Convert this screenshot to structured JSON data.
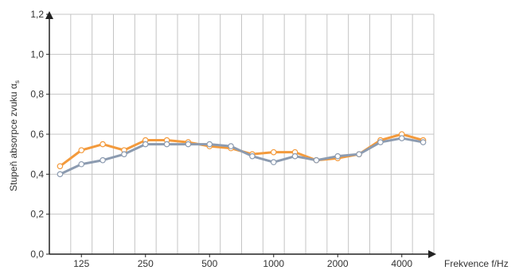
{
  "chart_data": {
    "type": "line",
    "xlabel": "Frekvence f/Hz",
    "ylabel": "Stupeň absorpce zvuku α",
    "ylabel_subscript": "s",
    "ylim": [
      0,
      1.2
    ],
    "y_ticks": [
      "0,0",
      "0,2",
      "0,4",
      "0,6",
      "0,8",
      "1,0",
      "1,2"
    ],
    "x": [
      100,
      125,
      160,
      200,
      250,
      315,
      400,
      500,
      630,
      800,
      1000,
      1250,
      1600,
      2000,
      2500,
      3150,
      4000,
      5000
    ],
    "x_tick_labels": [
      "125",
      "250",
      "500",
      "1000",
      "2000",
      "4000"
    ],
    "grid": true,
    "series": [
      {
        "color": "#f39a3c",
        "values": [
          0.44,
          0.52,
          0.55,
          0.52,
          0.57,
          0.57,
          0.56,
          0.54,
          0.53,
          0.5,
          0.51,
          0.51,
          0.47,
          0.48,
          0.5,
          0.57,
          0.6,
          0.57
        ]
      },
      {
        "color": "#8c9bb0",
        "values": [
          0.4,
          0.45,
          0.47,
          0.5,
          0.55,
          0.55,
          0.55,
          0.55,
          0.54,
          0.49,
          0.46,
          0.49,
          0.47,
          0.49,
          0.5,
          0.56,
          0.58,
          0.56
        ]
      }
    ]
  }
}
